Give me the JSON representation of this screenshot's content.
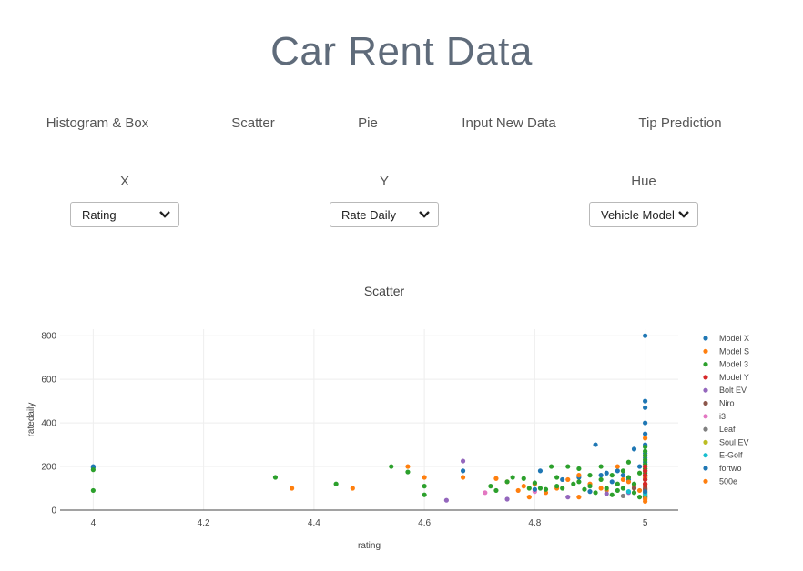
{
  "page": {
    "title": "Car Rent Data"
  },
  "nav": {
    "items": [
      "Histogram & Box",
      "Scatter",
      "Pie",
      "Input New Data",
      "Tip Prediction"
    ]
  },
  "controls": {
    "x": {
      "label": "X",
      "value": "Rating"
    },
    "y": {
      "label": "Y",
      "value": "Rate Daily"
    },
    "hue": {
      "label": "Hue",
      "value": "Vehicle Model"
    }
  },
  "chart_data": {
    "type": "scatter",
    "title": "Scatter",
    "xlabel": "rating",
    "ylabel": "ratedaily",
    "xlim": [
      3.94,
      5.06
    ],
    "ylim": [
      0,
      830
    ],
    "xticks": [
      "4",
      "4.2",
      "4.4",
      "4.6",
      "4.8",
      "5"
    ],
    "xtick_values": [
      4,
      4.2,
      4.4,
      4.6,
      4.8,
      5
    ],
    "yticks": [
      "0",
      "200",
      "400",
      "600",
      "800"
    ],
    "ytick_values": [
      0,
      200,
      400,
      600,
      800
    ],
    "grid": true,
    "legend_position": "right",
    "series": [
      {
        "name": "Model X",
        "color": "#1f77b4",
        "points": [
          [
            4,
            200
          ],
          [
            4,
            195
          ],
          [
            4.67,
            180
          ],
          [
            4.81,
            180
          ],
          [
            4.85,
            140
          ],
          [
            4.88,
            150
          ],
          [
            4.91,
            300
          ],
          [
            4.92,
            160
          ],
          [
            4.93,
            170
          ],
          [
            4.94,
            130
          ],
          [
            4.95,
            180
          ],
          [
            4.96,
            160
          ],
          [
            4.97,
            140
          ],
          [
            4.98,
            280
          ],
          [
            4.99,
            200
          ],
          [
            5,
            800
          ],
          [
            5,
            500
          ],
          [
            5,
            470
          ],
          [
            5,
            400
          ],
          [
            5,
            350
          ],
          [
            5,
            300
          ],
          [
            5,
            260
          ],
          [
            5,
            240
          ],
          [
            5,
            220
          ],
          [
            5,
            200
          ],
          [
            5,
            180
          ],
          [
            5,
            160
          ],
          [
            5,
            150
          ]
        ]
      },
      {
        "name": "Model S",
        "color": "#ff7f0e",
        "points": [
          [
            4.36,
            100
          ],
          [
            4.47,
            100
          ],
          [
            4.57,
            200
          ],
          [
            4.6,
            150
          ],
          [
            4.67,
            150
          ],
          [
            4.73,
            145
          ],
          [
            4.75,
            130
          ],
          [
            4.77,
            90
          ],
          [
            4.78,
            110
          ],
          [
            4.79,
            60
          ],
          [
            4.8,
            120
          ],
          [
            4.82,
            80
          ],
          [
            4.84,
            100
          ],
          [
            4.86,
            140
          ],
          [
            4.88,
            160
          ],
          [
            4.9,
            120
          ],
          [
            4.92,
            100
          ],
          [
            4.93,
            90
          ],
          [
            4.95,
            200
          ],
          [
            4.96,
            140
          ],
          [
            4.97,
            130
          ],
          [
            4.98,
            110
          ],
          [
            4.99,
            90
          ],
          [
            5,
            330
          ],
          [
            5,
            250
          ],
          [
            5,
            190
          ],
          [
            5,
            150
          ],
          [
            5,
            120
          ],
          [
            5,
            90
          ],
          [
            5,
            60
          ],
          [
            5,
            40
          ]
        ]
      },
      {
        "name": "Model 3",
        "color": "#2ca02c",
        "points": [
          [
            4,
            90
          ],
          [
            4,
            185
          ],
          [
            4.33,
            150
          ],
          [
            4.44,
            120
          ],
          [
            4.54,
            200
          ],
          [
            4.57,
            175
          ],
          [
            4.6,
            110
          ],
          [
            4.6,
            70
          ],
          [
            4.72,
            110
          ],
          [
            4.73,
            90
          ],
          [
            4.75,
            130
          ],
          [
            4.76,
            150
          ],
          [
            4.78,
            145
          ],
          [
            4.79,
            100
          ],
          [
            4.8,
            125
          ],
          [
            4.81,
            100
          ],
          [
            4.82,
            95
          ],
          [
            4.83,
            200
          ],
          [
            4.84,
            150
          ],
          [
            4.84,
            110
          ],
          [
            4.85,
            100
          ],
          [
            4.86,
            200
          ],
          [
            4.87,
            120
          ],
          [
            4.88,
            190
          ],
          [
            4.88,
            130
          ],
          [
            4.89,
            95
          ],
          [
            4.9,
            160
          ],
          [
            4.9,
            110
          ],
          [
            4.91,
            80
          ],
          [
            4.92,
            200
          ],
          [
            4.92,
            140
          ],
          [
            4.93,
            100
          ],
          [
            4.94,
            160
          ],
          [
            4.94,
            70
          ],
          [
            4.95,
            120
          ],
          [
            4.95,
            90
          ],
          [
            4.96,
            180
          ],
          [
            4.96,
            100
          ],
          [
            4.97,
            220
          ],
          [
            4.97,
            150
          ],
          [
            4.98,
            120
          ],
          [
            4.98,
            80
          ],
          [
            4.99,
            170
          ],
          [
            4.99,
            60
          ],
          [
            5,
            290
          ],
          [
            5,
            270
          ],
          [
            5,
            250
          ],
          [
            5,
            230
          ],
          [
            5,
            210
          ],
          [
            5,
            190
          ],
          [
            5,
            170
          ],
          [
            5,
            140
          ],
          [
            5,
            110
          ],
          [
            5,
            80
          ],
          [
            5,
            60
          ]
        ]
      },
      {
        "name": "Model Y",
        "color": "#d62728",
        "points": [
          [
            5,
            200
          ],
          [
            5,
            180
          ],
          [
            5,
            160
          ],
          [
            5,
            140
          ],
          [
            5,
            120
          ],
          [
            5,
            100
          ]
        ]
      },
      {
        "name": "Bolt EV",
        "color": "#9467bd",
        "points": [
          [
            4.64,
            45
          ],
          [
            4.67,
            225
          ],
          [
            4.75,
            50
          ],
          [
            4.86,
            60
          ],
          [
            4.93,
            75
          ],
          [
            4.97,
            80
          ],
          [
            5,
            70
          ]
        ]
      },
      {
        "name": "Niro",
        "color": "#8c564b",
        "points": [
          [
            5,
            95
          ],
          [
            4.98,
            100
          ]
        ]
      },
      {
        "name": "i3",
        "color": "#e377c2",
        "points": [
          [
            4.71,
            80
          ],
          [
            4.8,
            85
          ]
        ]
      },
      {
        "name": "Leaf",
        "color": "#7f7f7f",
        "points": [
          [
            5,
            55
          ],
          [
            4.96,
            65
          ]
        ]
      },
      {
        "name": "Soul EV",
        "color": "#bcbd22",
        "points": [
          [
            5,
            70
          ]
        ]
      },
      {
        "name": "E-Golf",
        "color": "#17becf",
        "points": [
          [
            5,
            75
          ],
          [
            4.97,
            85
          ]
        ]
      },
      {
        "name": "fortwo",
        "color": "#1f77b4",
        "points": [
          [
            4.8,
            95
          ],
          [
            4.9,
            85
          ],
          [
            5,
            85
          ]
        ]
      },
      {
        "name": "500e",
        "color": "#ff7f0e",
        "points": [
          [
            4.88,
            60
          ],
          [
            5,
            50
          ]
        ]
      }
    ]
  }
}
